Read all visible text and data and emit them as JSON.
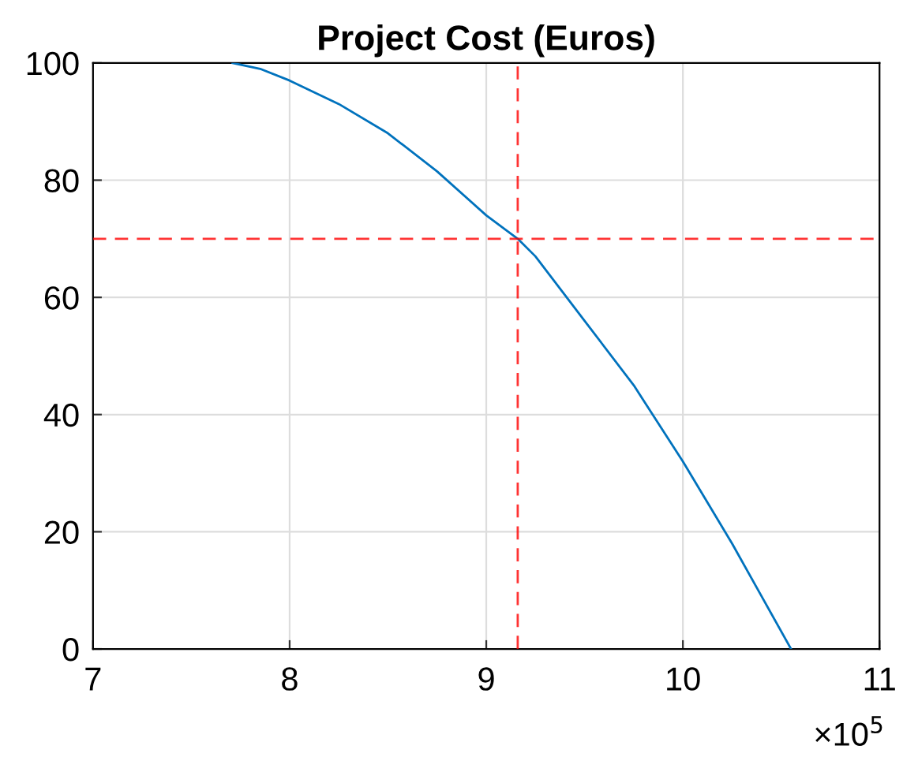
{
  "chart_data": {
    "type": "line",
    "title": "Project Cost (Euros)",
    "series": [
      {
        "color": "#0072bd",
        "x": [
          7.71,
          7.85,
          8,
          8.25,
          8.5,
          8.75,
          9,
          9.16,
          9.25,
          9.5,
          9.75,
          10,
          10.25,
          10.4,
          10.55
        ],
        "values": [
          100,
          99,
          97,
          93,
          88,
          81.5,
          74,
          70,
          67,
          56,
          45,
          32,
          18,
          9,
          0
        ]
      }
    ],
    "xlim": [
      7,
      11
    ],
    "ylim": [
      0,
      100
    ],
    "xticks": [
      7,
      8,
      9,
      10,
      11
    ],
    "yticks": [
      0,
      20,
      40,
      60,
      80,
      100
    ],
    "grid": true,
    "marker": "none",
    "line_style": "solid",
    "ref_lines": [
      {
        "axis": "x",
        "value": 9.16,
        "color": "#ff0000",
        "line_style": "dashed"
      },
      {
        "axis": "y",
        "value": 70,
        "color": "#ff0000",
        "line_style": "dashed"
      }
    ],
    "annotations": [
      "×10$^{5}$"
    ]
  }
}
